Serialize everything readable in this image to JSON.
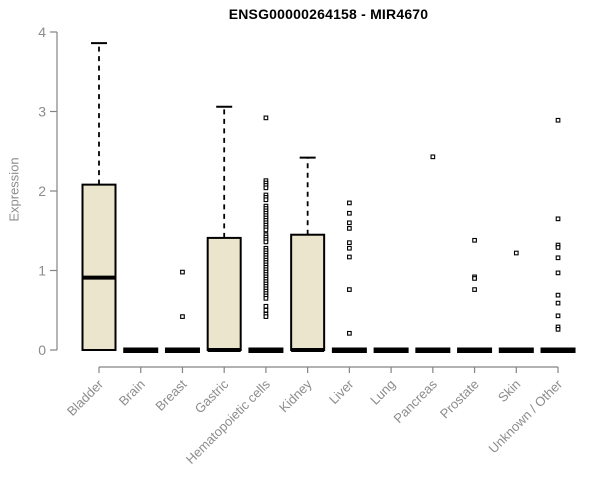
{
  "chart_data": {
    "type": "boxplot",
    "title": "ENSG00000264158 - MIR4670",
    "ylabel": "Expression",
    "xlabel": "",
    "ylim": [
      0,
      4
    ],
    "yticks": [
      0,
      1,
      2,
      3,
      4
    ],
    "grid": false,
    "legend": "none",
    "categories": [
      "Bladder",
      "Brain",
      "Breast",
      "Gastric",
      "Hematopoietic cells",
      "Kidney",
      "Liver",
      "Lung",
      "Pancreas",
      "Prostate",
      "Skin",
      "Unknown / Other"
    ],
    "boxes": [
      {
        "category": "Bladder",
        "whisker_low": 0,
        "q1": 0,
        "median": 0.91,
        "q3": 2.08,
        "whisker_high": 3.86,
        "outliers": []
      },
      {
        "category": "Brain",
        "whisker_low": 0,
        "q1": 0,
        "median": 0,
        "q3": 0,
        "whisker_high": 0,
        "outliers": []
      },
      {
        "category": "Breast",
        "whisker_low": 0,
        "q1": 0,
        "median": 0,
        "q3": 0,
        "whisker_high": 0,
        "outliers": [
          0.98,
          0.42
        ]
      },
      {
        "category": "Gastric",
        "whisker_low": 0,
        "q1": 0,
        "median": 0,
        "q3": 1.41,
        "whisker_high": 3.06,
        "outliers": []
      },
      {
        "category": "Hematopoietic cells",
        "whisker_low": 0,
        "q1": 0,
        "median": 0,
        "q3": 0,
        "whisker_high": 0,
        "outliers": [
          2.92,
          2.13,
          2.1,
          2.07,
          2.04,
          1.95,
          1.92,
          1.89,
          1.81,
          1.78,
          1.75,
          1.72,
          1.69,
          1.66,
          1.63,
          1.6,
          1.57,
          1.54,
          1.51,
          1.45,
          1.42,
          1.39,
          1.36,
          1.28,
          1.25,
          1.22,
          1.19,
          1.16,
          1.13,
          1.1,
          1.07,
          1.04,
          1.01,
          0.98,
          0.95,
          0.92,
          0.89,
          0.86,
          0.83,
          0.8,
          0.77,
          0.74,
          0.71,
          0.68,
          0.65,
          0.55,
          0.5,
          0.45,
          0.42
        ]
      },
      {
        "category": "Kidney",
        "whisker_low": 0,
        "q1": 0,
        "median": 0,
        "q3": 1.45,
        "whisker_high": 2.42,
        "outliers": []
      },
      {
        "category": "Liver",
        "whisker_low": 0,
        "q1": 0,
        "median": 0,
        "q3": 0,
        "whisker_high": 0,
        "outliers": [
          1.85,
          1.72,
          1.6,
          1.53,
          1.35,
          1.28,
          1.17,
          0.76,
          0.21
        ]
      },
      {
        "category": "Lung",
        "whisker_low": 0,
        "q1": 0,
        "median": 0,
        "q3": 0,
        "whisker_high": 0,
        "outliers": []
      },
      {
        "category": "Pancreas",
        "whisker_low": 0,
        "q1": 0,
        "median": 0,
        "q3": 0,
        "whisker_high": 0,
        "outliers": [
          2.43
        ]
      },
      {
        "category": "Prostate",
        "whisker_low": 0,
        "q1": 0,
        "median": 0,
        "q3": 0,
        "whisker_high": 0,
        "outliers": [
          1.38,
          0.92,
          0.9,
          0.76
        ]
      },
      {
        "category": "Skin",
        "whisker_low": 0,
        "q1": 0,
        "median": 0,
        "q3": 0,
        "whisker_high": 0,
        "outliers": [
          1.22
        ]
      },
      {
        "category": "Unknown / Other",
        "whisker_low": 0,
        "q1": 0,
        "median": 0,
        "q3": 0,
        "whisker_high": 0,
        "outliers": [
          2.89,
          1.65,
          1.32,
          1.29,
          1.16,
          0.97,
          0.69,
          0.59,
          0.43,
          0.29,
          0.26
        ]
      }
    ],
    "colors": {
      "box_fill": "#EBE5CD",
      "box_border": "#000000",
      "median": "#000000",
      "whisker": "#000000",
      "outlier_stroke": "#000000",
      "outlier_fill": "#FFFFFF",
      "axis": "#848484",
      "axis_text": "#8C8C8C",
      "title": "#000000",
      "background": "#FFFFFF"
    }
  }
}
